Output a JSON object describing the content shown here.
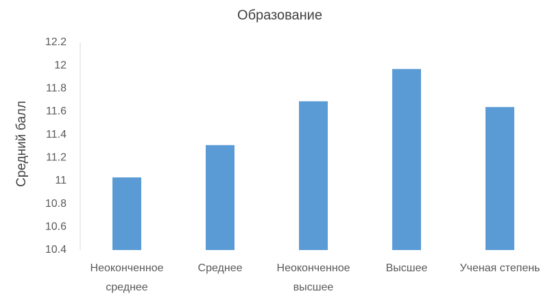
{
  "chart_data": {
    "type": "bar",
    "title": "Образование",
    "y_label": "Средний балл",
    "categories": [
      "Неоконченное\nсреднее",
      "Среднее",
      "Неоконченное\nвысшее",
      "Высшее",
      "Ученая степень"
    ],
    "values": [
      11.03,
      11.31,
      11.69,
      11.97,
      11.64
    ],
    "color": "#5b9bd5",
    "ylim": [
      10.4,
      12.2
    ],
    "yticks": [
      10.4,
      10.6,
      10.8,
      11,
      11.2,
      11.4,
      11.6,
      11.8,
      12,
      12.2
    ],
    "grid": false
  }
}
